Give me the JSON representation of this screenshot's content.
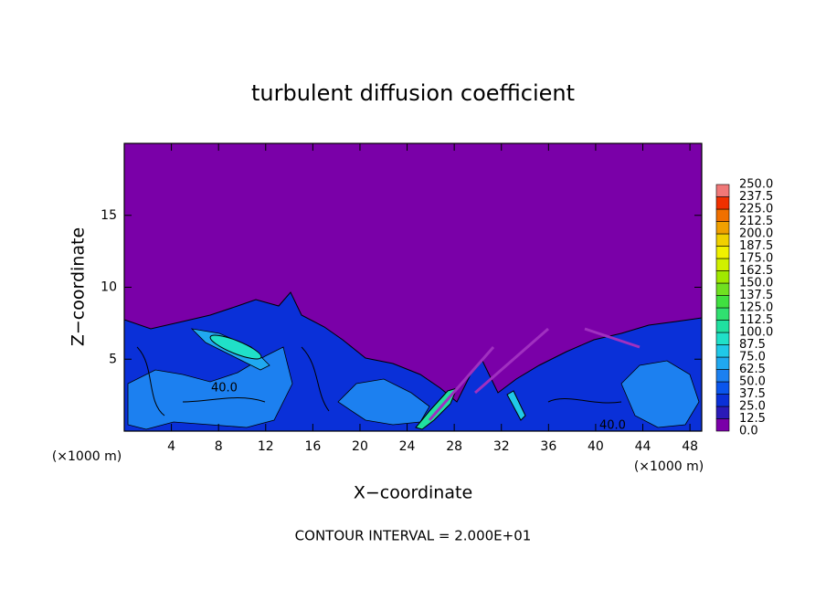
{
  "chart_data": {
    "type": "contour",
    "title": "turbulent diffusion coefficient",
    "xlabel": "X−coordinate",
    "ylabel": "Z−coordinate",
    "x_unit_left": "(×1000 m)",
    "x_unit_right": "(×1000 m)",
    "footer": "CONTOUR INTERVAL = 2.000E+01",
    "contour_labels": [
      "40.0",
      "40.0"
    ],
    "xlim": [
      0,
      49
    ],
    "ylim": [
      0,
      20
    ],
    "xticks": [
      4,
      8,
      12,
      16,
      20,
      24,
      28,
      32,
      36,
      40,
      44,
      48
    ],
    "yticks": [
      5,
      10,
      15
    ],
    "colorbar": {
      "levels": [
        {
          "value": 0,
          "label": "0.0"
        },
        12.5,
        {
          "value": 25,
          "label": "25.0"
        },
        37.5,
        {
          "value": 50,
          "label": "50.0"
        },
        62.5,
        {
          "value": 75,
          "label": "75.0"
        },
        87.5,
        {
          "value": 100,
          "label": "100.0"
        },
        112.5,
        {
          "value": 125,
          "label": "125.0"
        },
        137.5,
        {
          "value": 150,
          "label": "150.0"
        },
        162.5,
        {
          "value": 175,
          "label": "175.0"
        },
        187.5,
        {
          "value": 200,
          "label": "200.0"
        },
        212.5,
        {
          "value": 225,
          "label": "225.0"
        },
        237.5,
        {
          "value": 250,
          "label": "250.0"
        }
      ],
      "colors": [
        "#7a00a8",
        "#2a1ab8",
        "#0a30d8",
        "#0a55ec",
        "#1c80f0",
        "#20a8f0",
        "#20c8e8",
        "#20e0c8",
        "#20e0a0",
        "#30e070",
        "#40e040",
        "#70e020",
        "#a0e800",
        "#d0f000",
        "#f0f000",
        "#f0d000",
        "#f0a000",
        "#f07000",
        "#f03000",
        "#f07878"
      ]
    }
  }
}
